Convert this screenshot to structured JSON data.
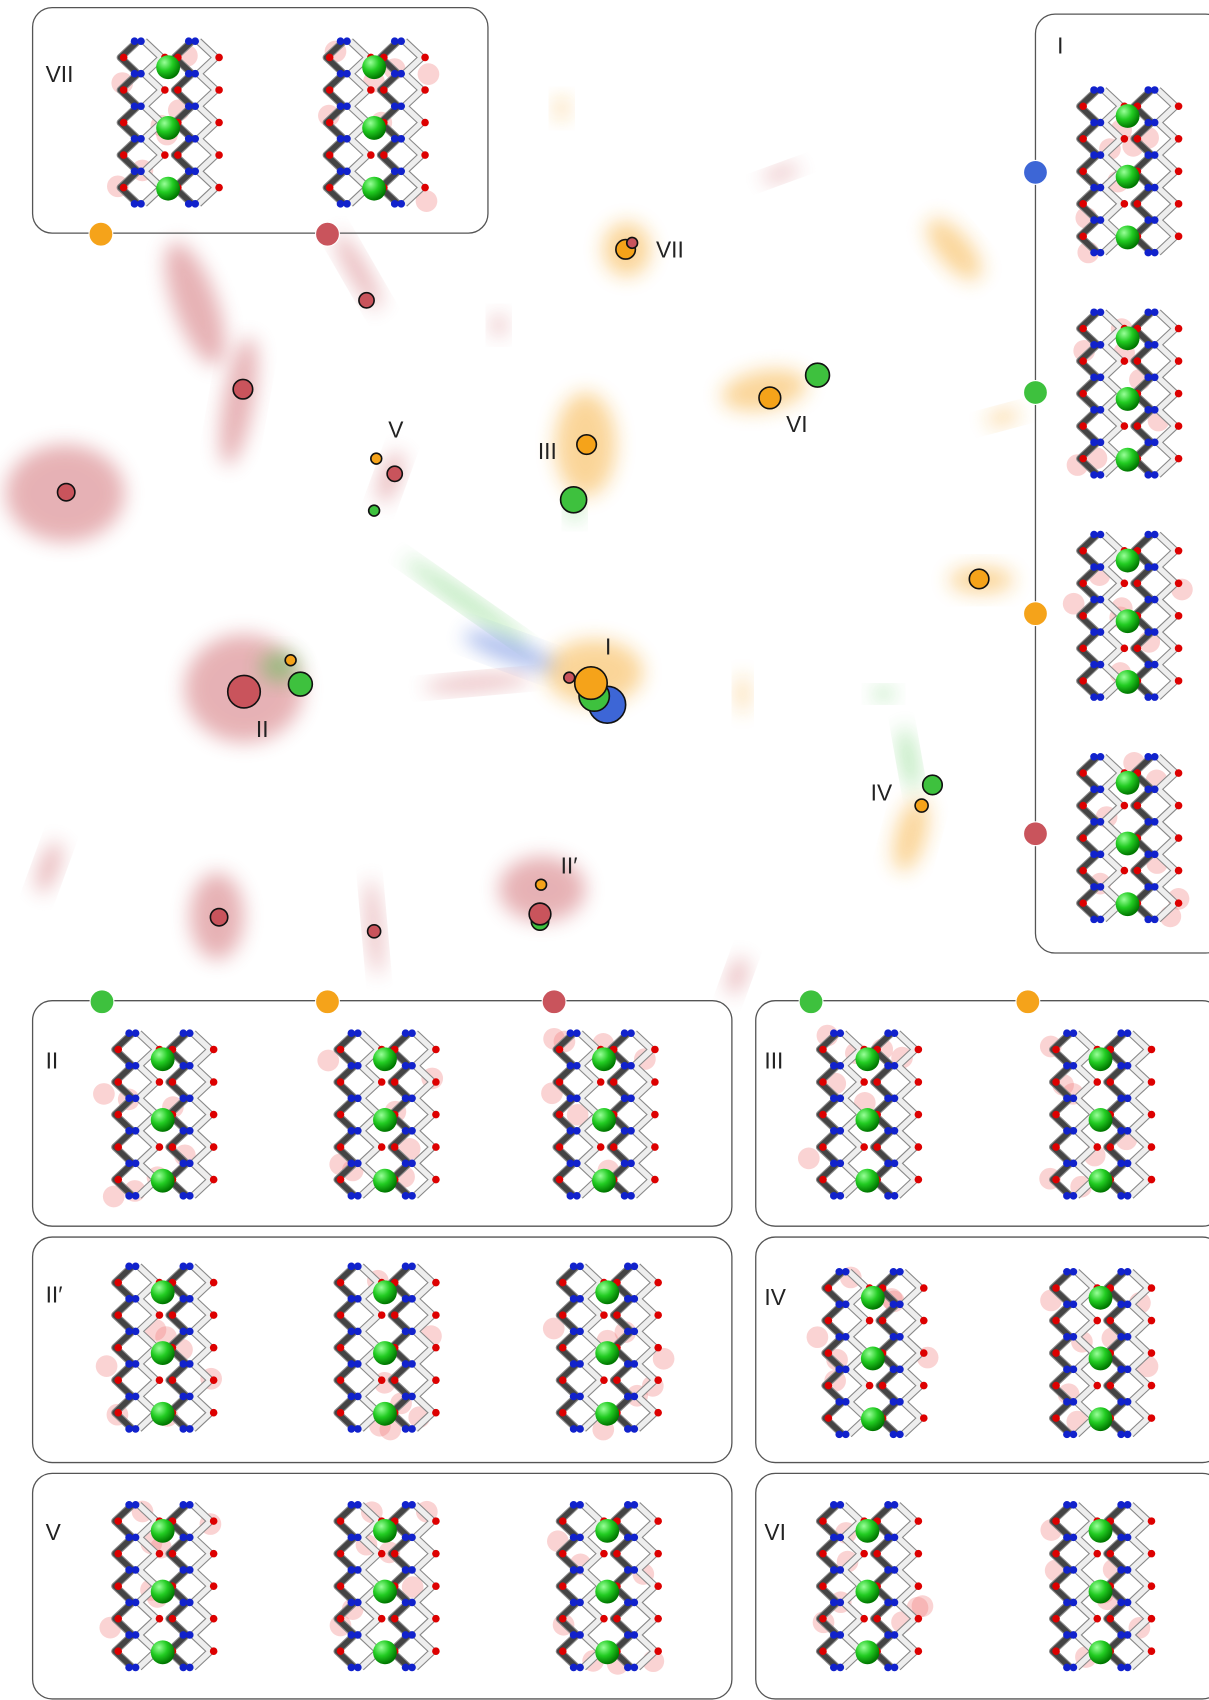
{
  "panels": [
    {
      "label": "VII"
    },
    {
      "label": "I"
    },
    {
      "label": "II"
    },
    {
      "label": "III"
    },
    {
      "label": "II′"
    },
    {
      "label": "IV"
    },
    {
      "label": "V"
    },
    {
      "label": "VI"
    }
  ],
  "map_labels": [
    {
      "label": "VII"
    },
    {
      "label": "VI"
    },
    {
      "label": "V"
    },
    {
      "label": "III"
    },
    {
      "label": "I"
    },
    {
      "label": "II"
    },
    {
      "label": "IV"
    },
    {
      "label": "II′"
    }
  ]
}
